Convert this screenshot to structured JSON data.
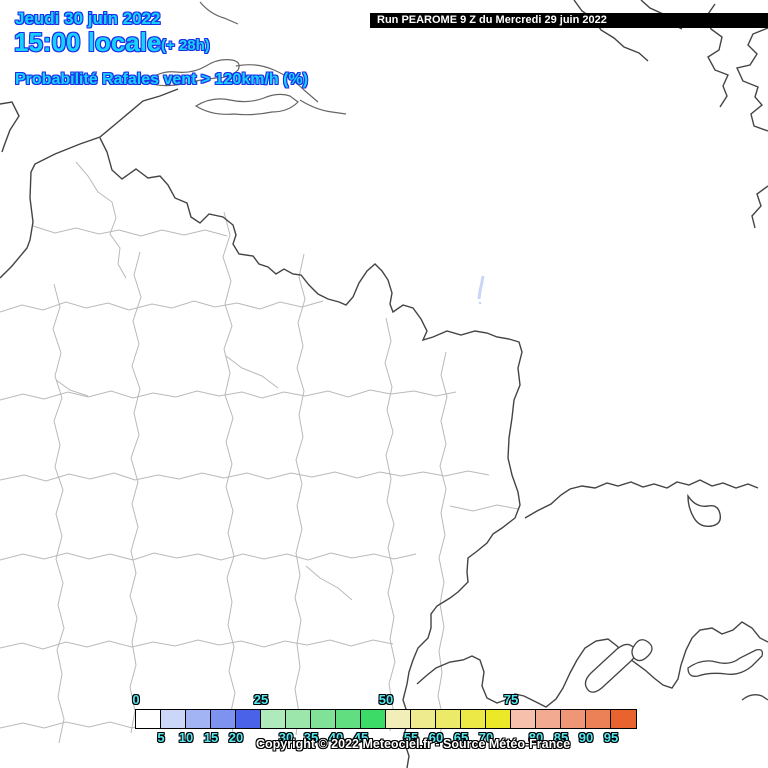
{
  "header": {
    "date_line": "Jeudi 30 juin 2022",
    "time_line": "15:00 locale",
    "offset": "(+ 28h)",
    "variable_line": "Probabilité Rafales vent > 120km/h (%)",
    "text_fill": "#17d2ff",
    "text_outline": "#1c2fe8"
  },
  "run_banner": {
    "label": "Run PEAROME 9 Z du Mercredi 29 juin 2022",
    "bg": "#000000",
    "fg": "#ffffff"
  },
  "map": {
    "background": "#ffffff",
    "department_line_color": "#b9b9b9",
    "country_line_color": "#444444",
    "data_spot": {
      "description": "small low-probability streak east of the Vosges",
      "color": "#c9d6f6",
      "value_range": "5-10 %"
    }
  },
  "legend": {
    "unit": "%",
    "label_fill": "#57e7f2",
    "label_outline": "#000000",
    "cells": [
      {
        "range": "0-5",
        "color": "#ffffff"
      },
      {
        "range": "5-10",
        "color": "#ccd6f8"
      },
      {
        "range": "10-15",
        "color": "#a2b4f4"
      },
      {
        "range": "15-20",
        "color": "#7e92f0"
      },
      {
        "range": "20-25",
        "color": "#4a62e8"
      },
      {
        "range": "25-30",
        "color": "#aeeabc"
      },
      {
        "range": "30-35",
        "color": "#9ce6ac"
      },
      {
        "range": "35-40",
        "color": "#80e296"
      },
      {
        "range": "40-45",
        "color": "#60de80"
      },
      {
        "range": "45-50",
        "color": "#3cda66"
      },
      {
        "range": "50-55",
        "color": "#f2eeb8"
      },
      {
        "range": "55-60",
        "color": "#eeea8e"
      },
      {
        "range": "60-65",
        "color": "#ecea68"
      },
      {
        "range": "65-70",
        "color": "#ece946"
      },
      {
        "range": "70-75",
        "color": "#ebe828"
      },
      {
        "range": "75-80",
        "color": "#f6c0ac"
      },
      {
        "range": "80-85",
        "color": "#f2ab90"
      },
      {
        "range": "85-90",
        "color": "#ef9676"
      },
      {
        "range": "90-95",
        "color": "#ec8056"
      },
      {
        "range": "95-100",
        "color": "#e9632e"
      }
    ],
    "top_labels": [
      {
        "text": "0",
        "boundary": 0
      },
      {
        "text": "25",
        "boundary": 5
      },
      {
        "text": "50",
        "boundary": 10
      },
      {
        "text": "75",
        "boundary": 15
      }
    ],
    "bottom_labels": [
      {
        "text": "5",
        "boundary": 1
      },
      {
        "text": "10",
        "boundary": 2
      },
      {
        "text": "15",
        "boundary": 3
      },
      {
        "text": "20",
        "boundary": 4
      },
      {
        "text": "30",
        "boundary": 6
      },
      {
        "text": "35",
        "boundary": 7
      },
      {
        "text": "40",
        "boundary": 8
      },
      {
        "text": "45",
        "boundary": 9
      },
      {
        "text": "55",
        "boundary": 11
      },
      {
        "text": "60",
        "boundary": 12
      },
      {
        "text": "65",
        "boundary": 13
      },
      {
        "text": "70",
        "boundary": 14
      },
      {
        "text": "80",
        "boundary": 16
      },
      {
        "text": "85",
        "boundary": 17
      },
      {
        "text": "90",
        "boundary": 18
      },
      {
        "text": "95",
        "boundary": 19
      }
    ]
  },
  "footer": {
    "copyright": "Copyright © 2022 Meteociel.fr - Source Météo-France"
  }
}
